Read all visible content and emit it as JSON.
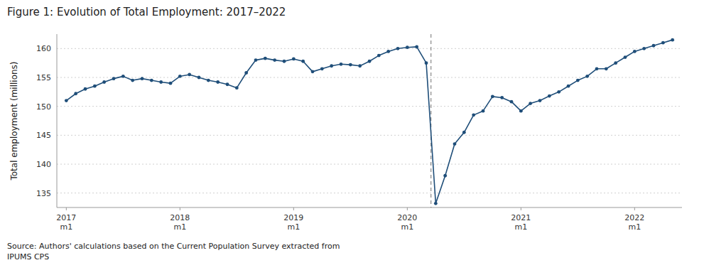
{
  "chart_data": {
    "type": "line",
    "title": "Figure 1: Evolution of Total Employment: 2017–2022",
    "ylabel": "Total employment (millions)",
    "source": "Source: Authors' calculations based on the Current Population Survey extracted from\nIPUMS CPS",
    "color": "#1f4e79",
    "marker": "circle",
    "grid": true,
    "vline_x": 38.5,
    "xlim": [
      -1,
      65
    ],
    "ylim": [
      132.5,
      162.5
    ],
    "yticks": [
      135,
      140,
      145,
      150,
      155,
      160
    ],
    "categories": [
      "2017\nm1",
      null,
      null,
      null,
      null,
      null,
      null,
      null,
      null,
      null,
      null,
      null,
      "2018\nm1",
      null,
      null,
      null,
      null,
      null,
      null,
      null,
      null,
      null,
      null,
      null,
      "2019\nm1",
      null,
      null,
      null,
      null,
      null,
      null,
      null,
      null,
      null,
      null,
      null,
      "2020\nm1",
      null,
      null,
      null,
      null,
      null,
      null,
      null,
      null,
      null,
      null,
      null,
      "2021\nm1",
      null,
      null,
      null,
      null,
      null,
      null,
      null,
      null,
      null,
      null,
      null,
      "2022\nm1",
      null,
      null,
      null,
      null
    ],
    "values": [
      151.0,
      152.2,
      153.0,
      153.5,
      154.2,
      154.8,
      155.2,
      154.5,
      154.8,
      154.5,
      154.2,
      154.0,
      155.2,
      155.5,
      155.0,
      154.5,
      154.2,
      153.8,
      153.2,
      155.8,
      158.0,
      158.3,
      158.0,
      157.8,
      158.2,
      157.8,
      156.0,
      156.5,
      157.0,
      157.3,
      157.2,
      157.0,
      157.8,
      158.8,
      159.5,
      160.0,
      160.2,
      160.3,
      157.5,
      133.2,
      138.0,
      143.5,
      145.5,
      148.5,
      149.2,
      151.7,
      151.5,
      150.8,
      149.2,
      150.5,
      151.0,
      151.8,
      152.5,
      153.5,
      154.5,
      155.2,
      156.5,
      156.5,
      157.5,
      158.5,
      159.5,
      160.0,
      160.5,
      161.0,
      161.5
    ]
  }
}
